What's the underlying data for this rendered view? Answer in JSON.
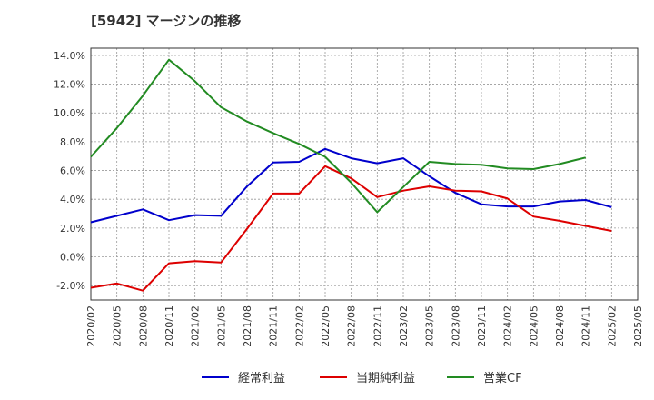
{
  "chart_data": {
    "type": "line",
    "title": "[5942]  マージンの推移",
    "xlabel": "",
    "ylabel": "",
    "ylim": [
      -3.0,
      14.5
    ],
    "yticks": [
      "14.0%",
      "12.0%",
      "10.0%",
      "8.0%",
      "6.0%",
      "4.0%",
      "2.0%",
      "0.0%",
      "-2.0%"
    ],
    "ytick_values": [
      14,
      12,
      10,
      8,
      6,
      4,
      2,
      0,
      -2
    ],
    "categories": [
      "2020/02",
      "2020/05",
      "2020/08",
      "2020/11",
      "2021/02",
      "2021/05",
      "2021/08",
      "2021/11",
      "2022/02",
      "2022/05",
      "2022/08",
      "2022/11",
      "2023/02",
      "2023/05",
      "2023/08",
      "2023/11",
      "2024/02",
      "2024/05",
      "2024/08",
      "2024/11",
      "2025/02",
      "2025/05"
    ],
    "grid": true,
    "legend_position": "bottom",
    "series": [
      {
        "name": "経常利益",
        "color": "#0000cc",
        "values": [
          2.4,
          2.85,
          3.3,
          2.55,
          2.9,
          2.85,
          4.9,
          6.55,
          6.6,
          7.5,
          6.85,
          6.5,
          6.85,
          5.6,
          4.45,
          3.65,
          3.5,
          3.5,
          3.85,
          3.95,
          3.45,
          null
        ]
      },
      {
        "name": "当期純利益",
        "color": "#dd0000",
        "values": [
          -2.15,
          -1.85,
          -2.35,
          -0.45,
          -0.3,
          -0.4,
          1.95,
          4.4,
          4.4,
          6.3,
          5.45,
          4.15,
          4.6,
          4.9,
          4.6,
          4.55,
          4.05,
          2.8,
          2.5,
          2.15,
          1.8,
          null
        ]
      },
      {
        "name": "営業CF",
        "color": "#228b22",
        "values": [
          6.95,
          8.95,
          11.2,
          13.7,
          12.2,
          10.4,
          9.4,
          8.6,
          7.85,
          6.95,
          5.15,
          3.1,
          4.85,
          6.6,
          6.45,
          6.4,
          6.15,
          6.1,
          6.45,
          6.9,
          null,
          null
        ]
      }
    ]
  }
}
